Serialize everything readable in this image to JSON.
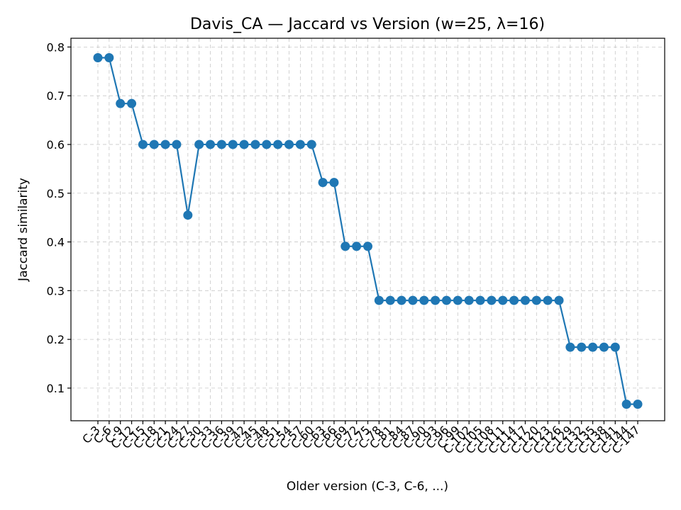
{
  "chart_data": {
    "type": "line",
    "title": "Davis_CA — Jaccard vs Version (w=25, λ=16)",
    "xlabel": "Older version (C-3, C-6, ...)",
    "ylabel": "Jaccard similarity",
    "ylim": [
      0.033,
      0.818
    ],
    "yticks": [
      0.1,
      0.2,
      0.3,
      0.4,
      0.5,
      0.6,
      0.7,
      0.8
    ],
    "ytick_labels": [
      "0.1",
      "0.2",
      "0.3",
      "0.4",
      "0.5",
      "0.6",
      "0.7",
      "0.8"
    ],
    "grid": true,
    "line_color": "#1f77b4",
    "marker": "circle",
    "categories": [
      "C-3",
      "C-6",
      "C-9",
      "C-12",
      "C-15",
      "C-18",
      "C-21",
      "C-24",
      "C-27",
      "C-30",
      "C-33",
      "C-36",
      "C-39",
      "C-42",
      "C-45",
      "C-48",
      "C-51",
      "C-54",
      "C-57",
      "C-60",
      "C-63",
      "C-66",
      "C-69",
      "C-72",
      "C-75",
      "C-78",
      "C-81",
      "C-84",
      "C-87",
      "C-90",
      "C-93",
      "C-96",
      "C-99",
      "C-102",
      "C-105",
      "C-108",
      "C-111",
      "C-114",
      "C-117",
      "C-120",
      "C-123",
      "C-126",
      "C-129",
      "C-132",
      "C-135",
      "C-138",
      "C-141",
      "C-144",
      "C-147"
    ],
    "values": [
      0.778,
      0.778,
      0.684,
      0.684,
      0.6,
      0.6,
      0.6,
      0.6,
      0.455,
      0.6,
      0.6,
      0.6,
      0.6,
      0.6,
      0.6,
      0.6,
      0.6,
      0.6,
      0.6,
      0.6,
      0.522,
      0.522,
      0.391,
      0.391,
      0.391,
      0.28,
      0.28,
      0.28,
      0.28,
      0.28,
      0.28,
      0.28,
      0.28,
      0.28,
      0.28,
      0.28,
      0.28,
      0.28,
      0.28,
      0.28,
      0.28,
      0.28,
      0.184,
      0.184,
      0.184,
      0.184,
      0.184,
      0.067,
      0.067
    ]
  }
}
